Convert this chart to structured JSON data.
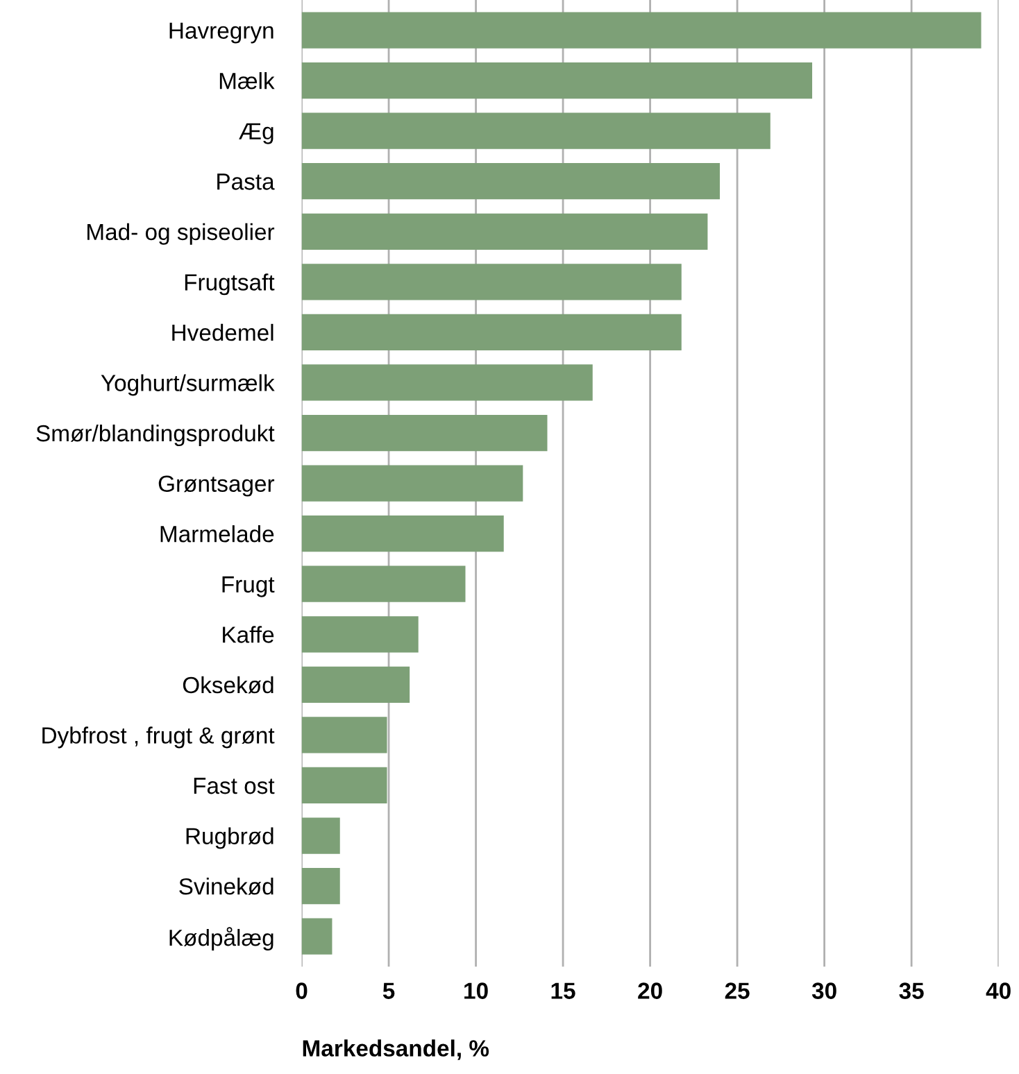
{
  "chart_data": {
    "type": "bar",
    "orientation": "horizontal",
    "xlabel": "Markedsandel, %",
    "categories": [
      "Havregryn",
      "Mælk",
      "Æg",
      "Pasta",
      "Mad- og spiseolier",
      "Frugtsaft",
      "Hvedemel",
      "Yoghurt/surmælk",
      "Smør/blandingsprodukt",
      "Grøntsager",
      "Marmelade",
      "Frugt",
      "Kaffe",
      "Oksekød",
      "Dybfrost , frugt & grønt",
      "Fast ost",
      "Rugbrød",
      "Svinekød",
      "Kødpålæg"
    ],
    "values": [
      39.0,
      29.3,
      26.9,
      24.0,
      23.3,
      21.8,
      21.8,
      16.7,
      14.1,
      12.7,
      11.6,
      9.4,
      6.7,
      6.2,
      4.9,
      4.9,
      2.2,
      2.2,
      1.75
    ],
    "color": "#7da077",
    "xlim": [
      0,
      40
    ],
    "xticks": [
      0,
      5,
      10,
      15,
      20,
      25,
      30,
      35,
      40
    ],
    "grid": "x"
  }
}
